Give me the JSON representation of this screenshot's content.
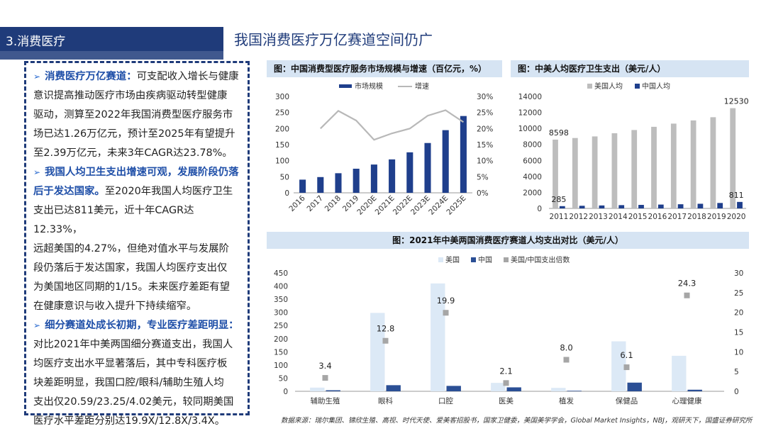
{
  "header": {
    "section": "3.消费医疗",
    "title": "我国消费医疗万亿赛道空间仍广"
  },
  "bullets": [
    {
      "highlight": "消费医疗万亿赛道：",
      "lines": [
        "可支配收入增长与健康",
        "意识提高推动医疗市场由疾病驱动转型健康",
        "驱动，测算至2022年我国消费型医疗服务市",
        "场已达1.26万亿元，预计至2025年有望提升",
        "至2.39万亿元，未来3年CAGR达23.78%。"
      ]
    },
    {
      "highlight": "我国人均卫生支出增速可观，发展阶段仍落后于发达国家。",
      "lines": [
        "至2020年我国人均医疗卫生",
        "支出已达811美元，近十年CAGR达12.33%，",
        "远超美国的4.27%，但绝对值水平与发展阶",
        "段仍落后于发达国家，我国人均医疗支出仅",
        "为美国地区同期的1/15。未来医疗差距有望",
        "在健康意识与收入提升下持续缩窄。"
      ]
    },
    {
      "highlight": "细分赛道处成长初期，专业医疗差距明显：",
      "lines": [
        "对比2021年中美两国细分赛道支出，我国人",
        "均医疗支出水平显著落后，其中专科医疗板",
        "块差距明显，我国口腔/眼科/辅助生殖人均",
        "支出仅20.59/23.25/4.02美元，较同期美国",
        "医疗水平差距分别达19.9X/12.8X/3.4X。"
      ]
    }
  ],
  "chart_data": [
    {
      "type": "bar",
      "title": "图：中国消费型医疗服务市场规模与增速（百亿元，%）",
      "categories": [
        "2016",
        "2017",
        "2018",
        "2019",
        "2020E",
        "2021E",
        "2022E",
        "2023E",
        "2024E",
        "2025E"
      ],
      "series": [
        {
          "name": "市场规模",
          "type": "bar",
          "axis": "left",
          "values": [
            41,
            49,
            61,
            75,
            88,
            104,
            126,
            155,
            195,
            239
          ]
        },
        {
          "name": "增速",
          "type": "line",
          "axis": "right",
          "values": [
            null,
            20,
            25.5,
            22.5,
            16.5,
            18.5,
            20,
            24,
            25.7,
            22
          ]
        }
      ],
      "ylim": [
        0,
        300
      ],
      "yticks": [
        0,
        50,
        100,
        150,
        200,
        250,
        300
      ],
      "y2lim": [
        0,
        30
      ],
      "y2ticks": [
        "0%",
        "5%",
        "10%",
        "15%",
        "20%",
        "25%",
        "30%"
      ],
      "colors": {
        "bar": "#1f3f8c",
        "line": "#b8b8b8"
      }
    },
    {
      "type": "bar",
      "title": "图：中美人均医疗卫生支出（美元/人）",
      "categories": [
        "2011",
        "2012",
        "2013",
        "2014",
        "2015",
        "2016",
        "2017",
        "2018",
        "2019",
        "2020"
      ],
      "series": [
        {
          "name": "美国人均",
          "values": [
            8598,
            8800,
            9000,
            9400,
            9800,
            10200,
            10600,
            11000,
            11400,
            12530
          ]
        },
        {
          "name": "中国人均",
          "values": [
            285,
            330,
            370,
            410,
            440,
            480,
            520,
            580,
            680,
            811
          ]
        }
      ],
      "ylim": [
        0,
        14000
      ],
      "yticks": [
        0,
        2000,
        4000,
        6000,
        8000,
        10000,
        12000,
        14000
      ],
      "data_labels": {
        "0-0": "8598",
        "0-9": "12530",
        "1-0": "285",
        "1-9": "811"
      },
      "colors": {
        "us": "#bdbdbd",
        "cn": "#1f3f8c"
      }
    },
    {
      "type": "bar",
      "title": "图：2021年中美两国消费医疗赛道人均支出对比（美元/人）",
      "categories": [
        "辅助生殖",
        "眼科",
        "口腔",
        "医美",
        "植发",
        "保健品",
        "心理健康"
      ],
      "series": [
        {
          "name": "美国",
          "axis": "left",
          "values": [
            14,
            298,
            410,
            32,
            13,
            190,
            135
          ]
        },
        {
          "name": "中国",
          "axis": "left",
          "values": [
            4.02,
            23.25,
            20.59,
            15,
            2,
            33,
            6
          ]
        },
        {
          "name": "美国/中国支出倍数",
          "type": "scatter",
          "axis": "right",
          "values": [
            3.4,
            12.8,
            19.9,
            2.1,
            8.0,
            6.1,
            24.3
          ]
        }
      ],
      "ylim": [
        0,
        450
      ],
      "yticks": [
        0,
        50,
        100,
        150,
        200,
        250,
        300,
        350,
        400,
        450
      ],
      "y2lim": [
        0,
        30
      ],
      "y2ticks": [
        0,
        5,
        10,
        15,
        20,
        25,
        30
      ],
      "colors": {
        "us": "#dce9f6",
        "cn": "#2b4f95",
        "ratio": "#a6a6a6"
      }
    }
  ],
  "source": "数据来源：瑞尔集团、锦欣生殖、高视、时代天使、爱美客招股书，国家卫健委，美国美学学会，Global Market Insights，NBJ，观研天下，国盛证券研究所"
}
